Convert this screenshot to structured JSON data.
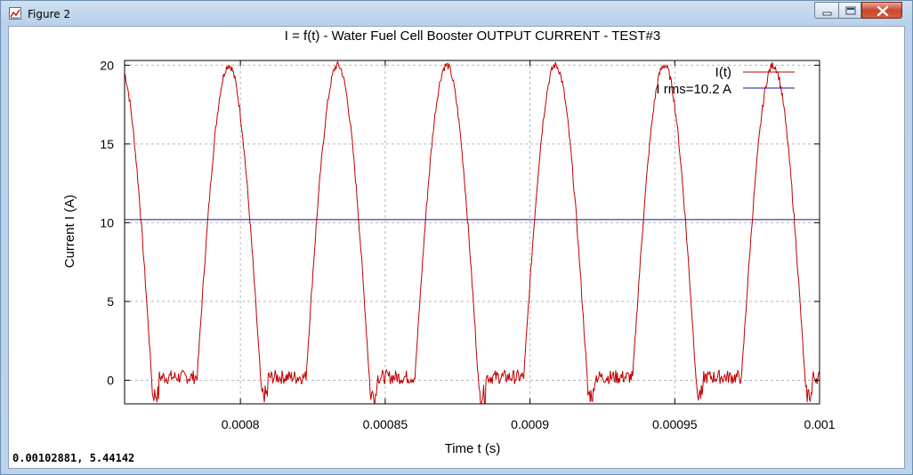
{
  "window": {
    "title": "Figure 2",
    "icon": "figure-icon"
  },
  "status": {
    "coordinate_readout": "0.00102881, 5.44142"
  },
  "colors": {
    "signal": "#c00000",
    "rms": "#1010a0",
    "grid": "#b8b8b8"
  },
  "chart_data": {
    "type": "line",
    "title": "I = f(t) - Water Fuel Cell Booster OUTPUT CURRENT - TEST#3",
    "xlabel": "Time t (s)",
    "ylabel": "Current I (A)",
    "xlim": [
      0.00076,
      0.001
    ],
    "ylim": [
      -1.5,
      20.3
    ],
    "x_ticks": [
      0.0008,
      0.00085,
      0.0009,
      0.00095,
      0.001
    ],
    "x_tick_labels": [
      "0.0008",
      "0.00085",
      "0.0009",
      "0.00095",
      "0.001"
    ],
    "y_ticks": [
      0,
      5,
      10,
      15,
      20
    ],
    "y_tick_labels": [
      "0",
      "5",
      "10",
      "15",
      "20"
    ],
    "grid": true,
    "legend_position": "top-right",
    "series": [
      {
        "name": "I(t)",
        "color": "#c00000",
        "period": 3.76e-05,
        "peak_times": [
          0.000796,
          0.0008336,
          0.0008712,
          0.0009088,
          0.0009464,
          0.000984
        ],
        "peak_value": 20.0,
        "baseline_value": 0.2,
        "min_value": -1.5
      },
      {
        "name": "I rms=10.2 A",
        "color": "#1010a0",
        "value": 10.2
      }
    ]
  }
}
